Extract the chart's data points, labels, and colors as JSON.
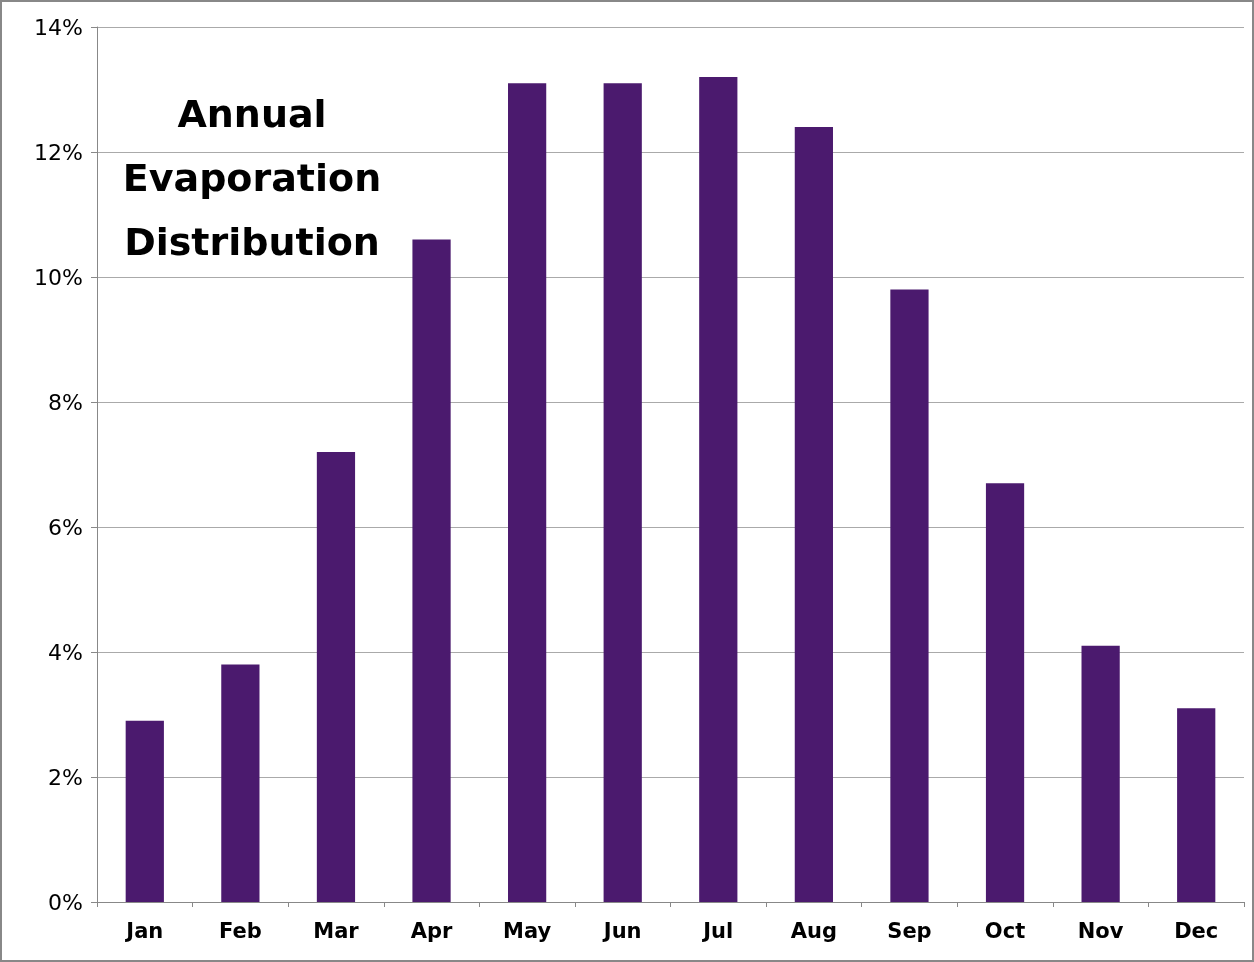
{
  "chart_data": {
    "type": "bar",
    "title": "Annual Evaporation Distribution",
    "categories": [
      "Jan",
      "Feb",
      "Mar",
      "Apr",
      "May",
      "Jun",
      "Jul",
      "Aug",
      "Sep",
      "Oct",
      "Nov",
      "Dec"
    ],
    "values": [
      2.9,
      3.8,
      7.2,
      10.6,
      13.1,
      13.1,
      13.2,
      12.4,
      9.8,
      6.7,
      4.1,
      3.1
    ],
    "color": "#4b1a6e",
    "ylim": [
      0,
      14
    ],
    "yticks": [
      {
        "value": 0,
        "label": "0%"
      },
      {
        "value": 2,
        "label": "2%"
      },
      {
        "value": 4,
        "label": "4%"
      },
      {
        "value": 6,
        "label": "6%"
      },
      {
        "value": 8,
        "label": "8%"
      },
      {
        "value": 10,
        "label": "10%"
      },
      {
        "value": 12,
        "label": "12%"
      },
      {
        "value": 14,
        "label": "14%"
      }
    ],
    "grid": "y"
  }
}
